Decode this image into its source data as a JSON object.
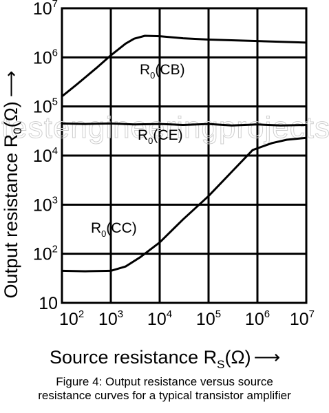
{
  "chart_data": {
    "type": "line",
    "title": "",
    "xlabel": {
      "text": "Source resistance R",
      "subscript": "S",
      "unit": "(Ω)",
      "arrow": "⟶"
    },
    "ylabel": {
      "text": "Output resistance R",
      "subscript": "0",
      "unit": "(Ω)",
      "arrow": "⟶"
    },
    "xscale": "log",
    "yscale": "log",
    "xlim": [
      100,
      10000000
    ],
    "ylim": [
      10,
      10000000
    ],
    "grid": true,
    "x_ticks": [
      {
        "value": 100,
        "base": "10",
        "exp": "2"
      },
      {
        "value": 1000,
        "base": "10",
        "exp": "3"
      },
      {
        "value": 10000,
        "base": "10",
        "exp": "4"
      },
      {
        "value": 100000,
        "base": "10",
        "exp": "5"
      },
      {
        "value": 1000000,
        "base": "10",
        "exp": "6"
      },
      {
        "value": 10000000,
        "base": "10",
        "exp": "7"
      }
    ],
    "y_ticks": [
      {
        "value": 10,
        "base": "10",
        "exp": ""
      },
      {
        "value": 100,
        "base": "10",
        "exp": "2"
      },
      {
        "value": 1000,
        "base": "10",
        "exp": "3"
      },
      {
        "value": 10000,
        "base": "10",
        "exp": "4"
      },
      {
        "value": 100000,
        "base": "10",
        "exp": "5"
      },
      {
        "value": 1000000,
        "base": "10",
        "exp": "6"
      },
      {
        "value": 10000000,
        "base": "10",
        "exp": "7"
      }
    ],
    "series": [
      {
        "name": "R0(CB)",
        "label": {
          "main": "R",
          "sub": "0",
          "rest": "(CB)"
        },
        "points": [
          [
            100,
            160000
          ],
          [
            200,
            280000
          ],
          [
            500,
            600000
          ],
          [
            1000,
            1100000
          ],
          [
            2000,
            1900000
          ],
          [
            3000,
            2400000
          ],
          [
            5000,
            2750000
          ],
          [
            10000,
            2700000
          ],
          [
            30000,
            2450000
          ],
          [
            100000,
            2300000
          ],
          [
            1000000,
            2150000
          ],
          [
            10000000,
            2000000
          ]
        ]
      },
      {
        "name": "R0(CE)",
        "label": {
          "main": "R",
          "sub": "0",
          "rest": "(CE)"
        },
        "points": [
          [
            100,
            45000
          ],
          [
            300,
            44000
          ],
          [
            1000,
            45000
          ],
          [
            3000,
            43000
          ],
          [
            10000,
            44000
          ],
          [
            30000,
            42000
          ],
          [
            100000,
            44000
          ],
          [
            300000,
            41000
          ],
          [
            1000000,
            43000
          ],
          [
            3000000,
            41000
          ],
          [
            10000000,
            42000
          ]
        ]
      },
      {
        "name": "R0(CC)",
        "label": {
          "main": "R",
          "sub": "0",
          "rest": "(CC)"
        },
        "points": [
          [
            100,
            45
          ],
          [
            300,
            44
          ],
          [
            1000,
            45
          ],
          [
            2000,
            55
          ],
          [
            4000,
            85
          ],
          [
            10000,
            170
          ],
          [
            30000,
            500
          ],
          [
            100000,
            1500
          ],
          [
            300000,
            4700
          ],
          [
            800000,
            13000
          ],
          [
            2000000,
            18000
          ],
          [
            4000000,
            21000
          ],
          [
            10000000,
            23000
          ]
        ]
      }
    ]
  },
  "watermark": "testengineeringprojects.com",
  "caption": {
    "line1": "Figure 4: Output resistance versus source",
    "line2": "resistance curves for a typical transistor amplifier"
  }
}
